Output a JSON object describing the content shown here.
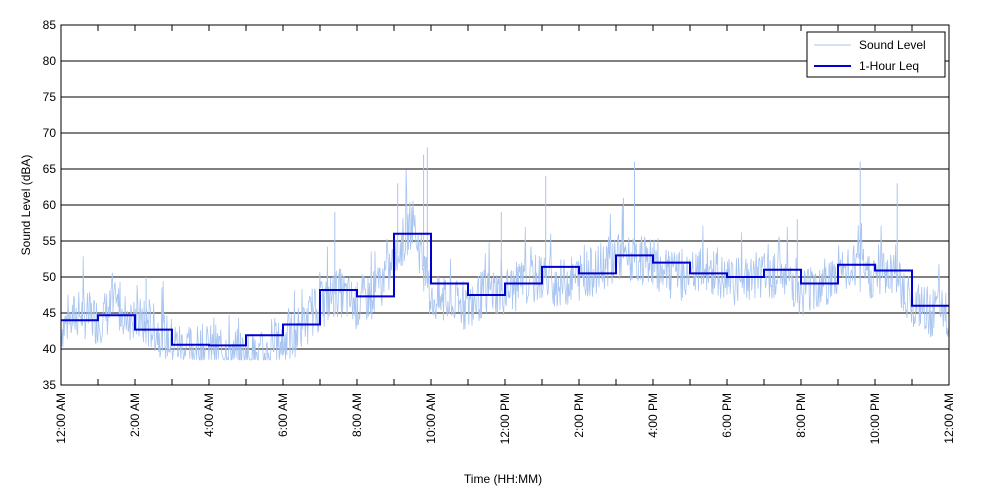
{
  "chart_data": {
    "type": "line",
    "xlabel": "Time (HH:MM)",
    "ylabel": "Sound Level (dBA)",
    "ylim": [
      35,
      85
    ],
    "yticks": [
      35,
      40,
      45,
      50,
      55,
      60,
      65,
      70,
      75,
      80,
      85
    ],
    "xlim_hours": [
      0,
      24
    ],
    "xticks": [
      {
        "hour": 0,
        "label": "12:00 AM"
      },
      {
        "hour": 2,
        "label": "2:00 AM"
      },
      {
        "hour": 4,
        "label": "4:00 AM"
      },
      {
        "hour": 6,
        "label": "6:00 AM"
      },
      {
        "hour": 8,
        "label": "8:00 AM"
      },
      {
        "hour": 10,
        "label": "10:00 AM"
      },
      {
        "hour": 12,
        "label": "12:00 PM"
      },
      {
        "hour": 14,
        "label": "2:00 PM"
      },
      {
        "hour": 16,
        "label": "4:00 PM"
      },
      {
        "hour": 18,
        "label": "6:00 PM"
      },
      {
        "hour": 20,
        "label": "8:00 PM"
      },
      {
        "hour": 22,
        "label": "10:00 PM"
      },
      {
        "hour": 24,
        "label": "12:00 AM"
      }
    ],
    "grid": "horizontal",
    "legend_position": "top-right",
    "series": [
      {
        "name": "Sound Level",
        "color": "#a8c4f0",
        "style": "thin-line",
        "x_hours": [
          0,
          0.5,
          1,
          1.5,
          2,
          2.5,
          3,
          3.5,
          4,
          4.5,
          5,
          5.5,
          6,
          6.5,
          7,
          7.5,
          8,
          8.5,
          9,
          9.5,
          10,
          10.5,
          11,
          11.5,
          12,
          12.5,
          13,
          13.5,
          14,
          14.5,
          15,
          15.5,
          16,
          16.5,
          17,
          17.5,
          18,
          18.5,
          19,
          19.5,
          20,
          20.5,
          21,
          21.5,
          22,
          22.5,
          23,
          23.5,
          24
        ],
        "values": [
          43,
          45,
          44,
          46,
          44,
          43,
          41,
          40,
          40,
          40,
          39,
          39,
          41,
          43,
          46,
          48,
          46,
          48,
          52,
          58,
          47,
          46,
          46,
          48,
          48,
          49,
          50,
          49,
          50,
          51,
          53,
          52,
          52,
          50,
          50,
          51,
          49,
          50,
          50,
          51,
          48,
          49,
          50,
          51,
          50,
          51,
          46,
          45,
          45
        ],
        "peaks": [
          {
            "x_hour": 2.3,
            "value": 50
          },
          {
            "x_hour": 7.4,
            "value": 59
          },
          {
            "x_hour": 9.1,
            "value": 63
          },
          {
            "x_hour": 9.9,
            "value": 68
          },
          {
            "x_hour": 9.8,
            "value": 67
          },
          {
            "x_hour": 11.9,
            "value": 59
          },
          {
            "x_hour": 13.1,
            "value": 64
          },
          {
            "x_hour": 15.2,
            "value": 61
          },
          {
            "x_hour": 15.5,
            "value": 66
          },
          {
            "x_hour": 19.9,
            "value": 58
          },
          {
            "x_hour": 21.6,
            "value": 66
          },
          {
            "x_hour": 22.6,
            "value": 63
          }
        ]
      },
      {
        "name": "1-Hour Leq",
        "color": "#0000d0",
        "style": "step",
        "hour_start": [
          0,
          1,
          2,
          3,
          4,
          5,
          6,
          7,
          8,
          9,
          10,
          11,
          12,
          13,
          14,
          15,
          16,
          17,
          18,
          19,
          20,
          21,
          22,
          23
        ],
        "values": [
          44,
          44.7,
          42.7,
          40.6,
          40.5,
          41.9,
          43.4,
          48.2,
          47.3,
          56,
          49.1,
          47.5,
          49.1,
          51.4,
          50.5,
          53,
          52,
          50.5,
          50,
          51,
          49.1,
          51.7,
          50.9,
          46
        ]
      }
    ]
  }
}
